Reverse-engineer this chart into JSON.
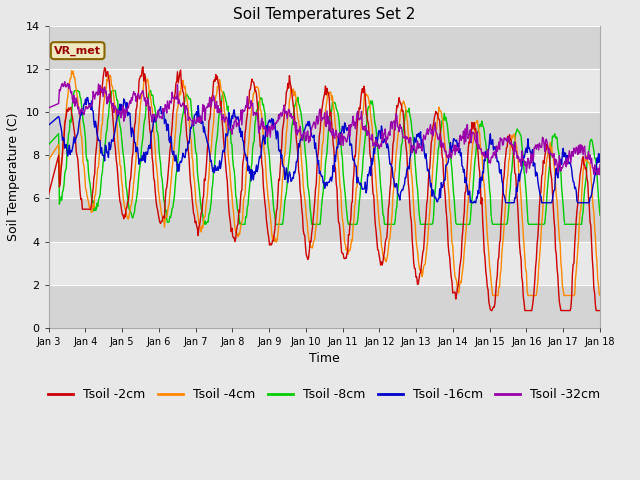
{
  "title": "Soil Temperatures Set 2",
  "xlabel": "Time",
  "ylabel": "Soil Temperature (C)",
  "ylim": [
    0,
    14
  ],
  "tick_labels": [
    "Jan 3",
    "Jan 4",
    "Jan 5",
    "Jan 6",
    "Jan 7",
    "Jan 8",
    "Jan 9",
    "Jan 10",
    "Jan 11",
    "Jan 12",
    "Jan 13",
    "Jan 14",
    "Jan 15",
    "Jan 16",
    "Jan 17",
    "Jan 18"
  ],
  "legend_labels": [
    "Tsoil -2cm",
    "Tsoil -4cm",
    "Tsoil -8cm",
    "Tsoil -16cm",
    "Tsoil -32cm"
  ],
  "colors": [
    "#cc0000",
    "#ff8800",
    "#00cc00",
    "#0000cc",
    "#9900aa"
  ],
  "annotation_text": "VR_met",
  "bg_light": "#e8e8e8",
  "bg_dark": "#d4d4d4",
  "title_fontsize": 11,
  "axis_fontsize": 9,
  "legend_fontsize": 9,
  "n_points": 720
}
